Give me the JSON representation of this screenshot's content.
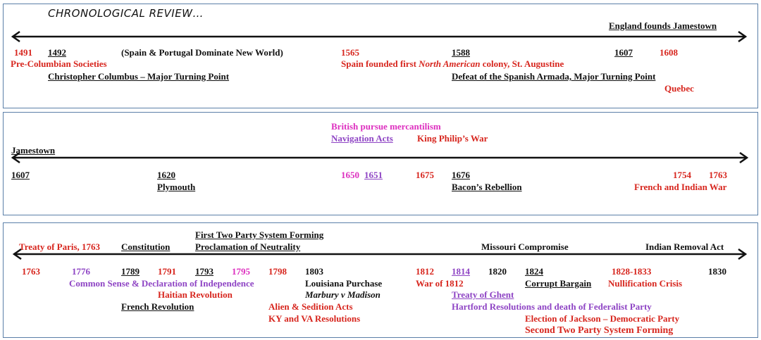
{
  "colors": {
    "red": "#d7261e",
    "black": "#111111",
    "purple": "#8e44c4",
    "magenta": "#dd2fbf",
    "border": "#5b7fa8"
  },
  "title": "CHRONOLOGICAL REVIEW…",
  "panel1": {
    "end_label": "England founds Jamestown",
    "y1491": "1491",
    "y1492": "1492",
    "spain_portugal": "(Spain & Portugal Dominate New World)",
    "y1565": "1565",
    "y1588": "1588",
    "y1607": "1607",
    "y1608": "1608",
    "pre_columbian": "Pre-Columbian Societies",
    "spain_founded_a": "Spain founded first ",
    "spain_founded_b": "North American",
    "spain_founded_c": " colony, St. Augustine",
    "columbus": "Christopher Columbus – Major Turning Point",
    "armada": "Defeat of the Spanish Armada, Major Turning Point",
    "quebec": "Quebec"
  },
  "panel2": {
    "mercantilism": "British pursue mercantilism",
    "navigation_acts": "Navigation Acts",
    "king_philip": "King Philip’s War",
    "jamestown": "Jamestown",
    "y1607": "1607",
    "y1620": "1620",
    "y1650": "1650",
    "y1651": "1651",
    "y1675": "1675",
    "y1676": "1676",
    "y1754": "1754",
    "y1763": "1763",
    "plymouth": "Plymouth",
    "bacon": "Bacon’s Rebellion",
    "french_indian": "French and Indian War"
  },
  "panel3": {
    "first_party": "First Two Party System Forming",
    "proclamation": "Proclamation of Neutrality",
    "treaty_paris": "Treaty of Paris, 1763",
    "constitution": "Constitution",
    "missouri": "Missouri Compromise",
    "indian_removal": "Indian Removal Act",
    "y1763": "1763",
    "y1776": "1776",
    "y1789": "1789",
    "y1791": "1791",
    "y1793": "1793",
    "y1795": "1795",
    "y1798": "1798",
    "y1803": "1803",
    "louisiana": "Louisiana Purchase",
    "y1812": "1812",
    "y1814": "1814",
    "y1820": "1820",
    "y1824": "1824",
    "y1828": "1828-1833",
    "y1830": "1830",
    "common_sense": "Common Sense & Declaration of Independence",
    "marbury": "Marbury v Madison",
    "war1812": "War of 1812",
    "corrupt": "Corrupt Bargain",
    "nullification": "Nullification Crisis",
    "haitian": "Haitian Revolution",
    "ghent": "Treaty of Ghent",
    "french_rev": "French Revolution",
    "alien_sedition": "Alien & Sedition Acts",
    "hartford": "Hartford Resolutions and death of Federalist Party",
    "ky_va": "KY and VA Resolutions",
    "jackson": "Election of Jackson – Democratic Party",
    "second_party": "Second Two Party System Forming"
  }
}
